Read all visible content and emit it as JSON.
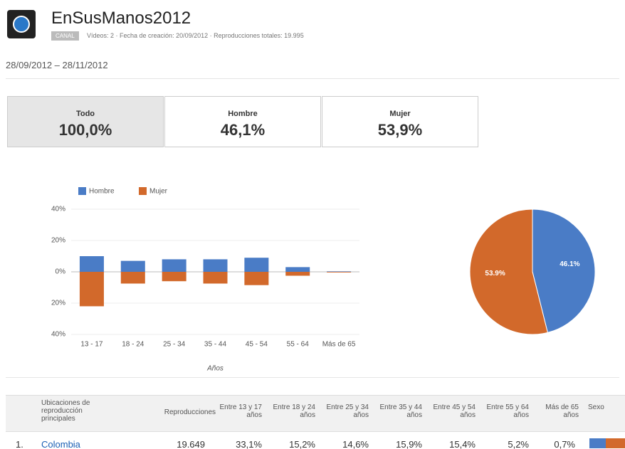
{
  "header": {
    "title": "EnSusManos2012",
    "badge": "CANAL",
    "meta": "Vídeos: 2 · Fecha de creación: 20/09/2012 · Reproducciones totales: 19.995",
    "date_range": "28/09/2012 – 28/11/2012"
  },
  "summary": [
    {
      "label": "Todo",
      "value": "100,0%"
    },
    {
      "label": "Hombre",
      "value": "46,1%"
    },
    {
      "label": "Mujer",
      "value": "53,9%"
    }
  ],
  "chart_data": [
    {
      "type": "bar",
      "x_label": "Años",
      "categories": [
        "13 - 17",
        "18 - 24",
        "25 - 34",
        "35 - 44",
        "45 - 54",
        "55 - 64",
        "Más de 65"
      ],
      "series": [
        {
          "name": "Hombre",
          "color": "#4a7cc6",
          "values": [
            10,
            7,
            8,
            8,
            9,
            3,
            0.3
          ]
        },
        {
          "name": "Mujer",
          "color": "#d2692b",
          "values": [
            -22,
            -7.5,
            -6,
            -7.5,
            -8.5,
            -2.5,
            -0.4
          ]
        }
      ],
      "ylim": [
        -40,
        40
      ],
      "yticks": [
        {
          "value": -40,
          "label": "40%"
        },
        {
          "value": -20,
          "label": "20%"
        },
        {
          "value": 0,
          "label": "0%"
        },
        {
          "value": 20,
          "label": "20%"
        },
        {
          "value": 40,
          "label": "40%"
        }
      ],
      "grid": true,
      "legend": "top-left"
    },
    {
      "type": "pie",
      "values": [
        46.1,
        53.9
      ],
      "value_labels": [
        "46.1%",
        "53.9%"
      ],
      "colors": [
        "#4a7cc6",
        "#d2692b"
      ]
    }
  ],
  "table": {
    "headers": [
      "Ubicaciones de reproducción principales",
      "Reproducciones",
      "Entre 13 y 17 años",
      "Entre 18 y 24 años",
      "Entre 25 y 34 años",
      "Entre 35 y 44 años",
      "Entre 45 y 54 años",
      "Entre 55 y 64 años",
      "Más de 65 años",
      "Sexo"
    ],
    "rows": [
      [
        "1.",
        "Colombia",
        "19.649",
        "33,1%",
        "15,2%",
        "14,6%",
        "15,9%",
        "15,4%",
        "5,2%",
        "0,7%"
      ]
    ]
  }
}
